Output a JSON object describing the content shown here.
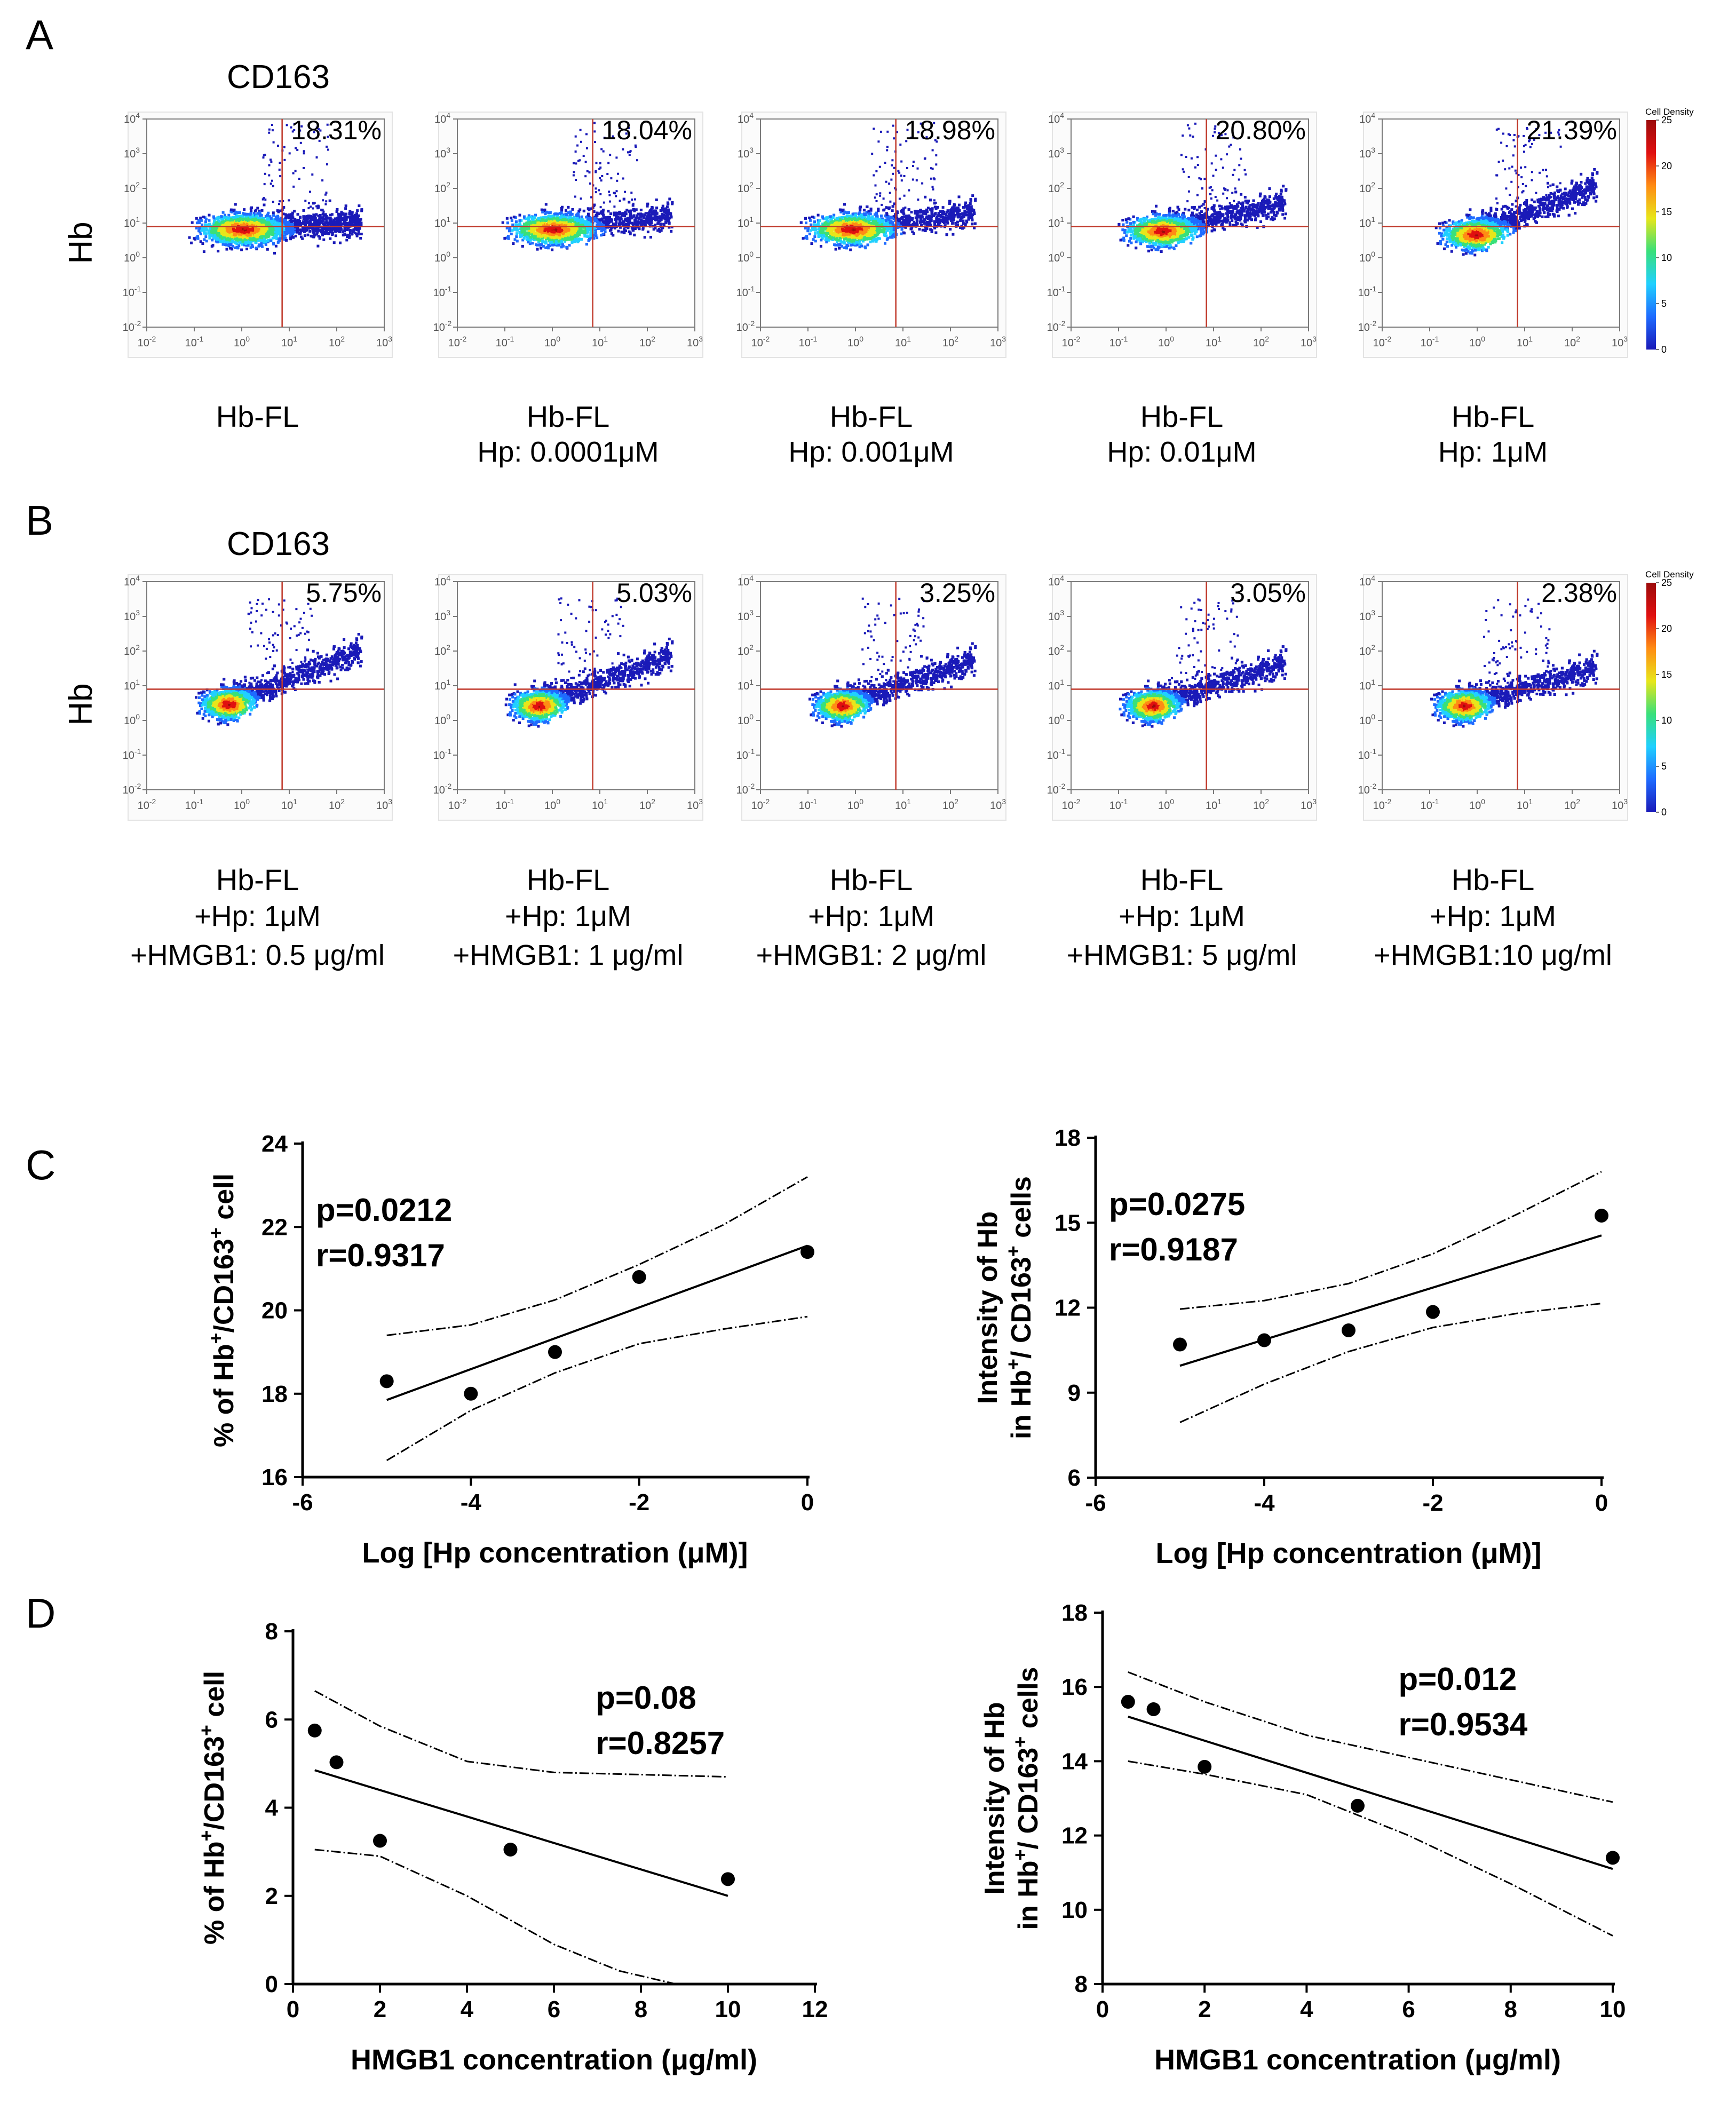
{
  "panel_letters": [
    "A",
    "B",
    "C",
    "D"
  ],
  "flow_common": {
    "y_label": "Hb",
    "x_label": "Hb-FL",
    "marker": "CD163",
    "exponents": [
      "-2",
      "-1",
      "0",
      "1",
      "2",
      "3"
    ],
    "y_exponents": [
      "-2",
      "-1",
      "0",
      "1",
      "2",
      "3",
      "4"
    ],
    "colorbar": {
      "title": "Cell Density",
      "ticks": [
        "0",
        "5",
        "10",
        "15",
        "20",
        "25"
      ],
      "colors": [
        "#1a1ab8",
        "#1f6bff",
        "#20d0ff",
        "#39e07a",
        "#e8e61a",
        "#ff8c14",
        "#e01010",
        "#9c0b0b"
      ]
    }
  },
  "flow_rows": [
    {
      "panel": "A",
      "plots": [
        {
          "percent": "18.31%",
          "conditions": [],
          "density": {
            "center_x": 0.0,
            "center_y": 0.85,
            "spread": 0.7,
            "tail": 0.05
          }
        },
        {
          "percent": "18.04%",
          "conditions": [
            "Hp: 0.0001μM"
          ],
          "density": {
            "center_x": 0.0,
            "center_y": 0.85,
            "spread": 0.7,
            "tail": 0.1
          }
        },
        {
          "percent": "18.98%",
          "conditions": [
            "Hp: 0.001μM"
          ],
          "density": {
            "center_x": -0.1,
            "center_y": 0.85,
            "spread": 0.7,
            "tail": 0.12
          }
        },
        {
          "percent": "20.80%",
          "conditions": [
            "Hp: 0.01μM"
          ],
          "density": {
            "center_x": -0.1,
            "center_y": 0.8,
            "spread": 0.6,
            "tail": 0.2
          }
        },
        {
          "percent": "21.39%",
          "conditions": [
            "Hp: 1μM"
          ],
          "density": {
            "center_x": -0.05,
            "center_y": 0.7,
            "spread": 0.55,
            "tail": 0.35
          }
        }
      ]
    },
    {
      "panel": "B",
      "plots": [
        {
          "percent": "5.75%",
          "conditions": [
            "+Hp: 1μM",
            "+HMGB1: 0.5 μg/ml"
          ],
          "density": {
            "center_x": -0.3,
            "center_y": 0.5,
            "spread": 0.45,
            "tail": 0.35
          }
        },
        {
          "percent": "5.03%",
          "conditions": [
            "+Hp: 1μM",
            "+HMGB1: 1 μg/ml"
          ],
          "density": {
            "center_x": -0.3,
            "center_y": 0.45,
            "spread": 0.45,
            "tail": 0.33
          }
        },
        {
          "percent": "3.25%",
          "conditions": [
            "+Hp: 1μM",
            "+HMGB1: 2 μg/ml"
          ],
          "density": {
            "center_x": -0.3,
            "center_y": 0.45,
            "spread": 0.45,
            "tail": 0.3
          }
        },
        {
          "percent": "3.05%",
          "conditions": [
            "+Hp: 1μM",
            "+HMGB1: 5 μg/ml"
          ],
          "density": {
            "center_x": -0.3,
            "center_y": 0.45,
            "spread": 0.45,
            "tail": 0.28
          }
        },
        {
          "percent": "2.38%",
          "conditions": [
            "+Hp: 1μM",
            "+HMGB1:10 μg/ml"
          ],
          "density": {
            "center_x": -0.3,
            "center_y": 0.45,
            "spread": 0.45,
            "tail": 0.25
          }
        }
      ]
    }
  ],
  "chart_data": [
    {
      "panel": "C",
      "type": "scatter",
      "xlabel": "Log [Hp concentration (μM)]",
      "ylabel": [
        "% of Hb",
        "+",
        "/CD163",
        "+",
        " cell"
      ],
      "x": [
        -5,
        -4,
        -3,
        -2,
        0
      ],
      "y": [
        18.3,
        18.0,
        19.0,
        20.8,
        21.4
      ],
      "xlim": [
        -6,
        0
      ],
      "ylim": [
        16,
        24
      ],
      "xticks": [
        -6,
        -4,
        -2,
        0
      ],
      "yticks": [
        16,
        18,
        20,
        22,
        24
      ],
      "fit": {
        "x": [
          -5,
          0
        ],
        "y": [
          17.85,
          21.55
        ]
      },
      "ci_upper": {
        "x": [
          -5,
          -4,
          -3,
          -2,
          -1,
          0
        ],
        "y": [
          19.4,
          19.65,
          20.25,
          21.1,
          22.05,
          23.2
        ]
      },
      "ci_lower": {
        "x": [
          -5,
          -4,
          -3,
          -2,
          -1,
          0
        ],
        "y": [
          16.4,
          17.6,
          18.5,
          19.2,
          19.55,
          19.85
        ]
      },
      "annotation": [
        "p=0.0212",
        "r=0.9317"
      ],
      "annotation_pos": "top-left"
    },
    {
      "panel": "C",
      "type": "scatter",
      "xlabel": "Log [Hp concentration (μM)]",
      "ylabel": [
        "Intensity of Hb",
        "in Hb",
        "+",
        "/ CD163",
        "+",
        " cells"
      ],
      "x": [
        -5,
        -4,
        -3,
        -2,
        0
      ],
      "y": [
        10.7,
        10.85,
        11.2,
        11.85,
        15.25
      ],
      "xlim": [
        -6,
        0
      ],
      "ylim": [
        6,
        18
      ],
      "xticks": [
        -6,
        -4,
        -2,
        0
      ],
      "yticks": [
        6,
        9,
        12,
        15,
        18
      ],
      "fit": {
        "x": [
          -5,
          0
        ],
        "y": [
          9.95,
          14.55
        ]
      },
      "ci_upper": {
        "x": [
          -5,
          -4,
          -3,
          -2,
          -1,
          0
        ],
        "y": [
          11.95,
          12.25,
          12.85,
          13.9,
          15.3,
          16.8
        ]
      },
      "ci_lower": {
        "x": [
          -5,
          -4,
          -3,
          -2,
          -1,
          0
        ],
        "y": [
          7.95,
          9.3,
          10.45,
          11.3,
          11.8,
          12.15
        ]
      },
      "annotation": [
        "p=0.0275",
        "r=0.9187"
      ],
      "annotation_pos": "top-left"
    },
    {
      "panel": "D",
      "type": "scatter",
      "xlabel": "HMGB1 concentration (μg/ml)",
      "ylabel": [
        "% of Hb",
        "+",
        "/CD163",
        "+",
        " cell"
      ],
      "x": [
        0.5,
        1,
        2,
        5,
        10
      ],
      "y": [
        5.75,
        5.03,
        3.25,
        3.05,
        2.38
      ],
      "xlim": [
        0,
        12
      ],
      "ylim": [
        0,
        8
      ],
      "xticks": [
        0,
        2,
        4,
        6,
        8,
        10,
        12
      ],
      "yticks": [
        0,
        2,
        4,
        6,
        8
      ],
      "fit": {
        "x": [
          0.5,
          10
        ],
        "y": [
          4.85,
          2.0
        ]
      },
      "ci_upper": {
        "x": [
          0.5,
          2,
          4,
          6,
          8,
          10
        ],
        "y": [
          6.65,
          5.85,
          5.05,
          4.8,
          4.75,
          4.7
        ]
      },
      "ci_lower": {
        "x": [
          0.5,
          2,
          4,
          6,
          7.5,
          8.8
        ],
        "y": [
          3.05,
          2.9,
          2.0,
          0.9,
          0.3,
          0.0
        ]
      },
      "annotation": [
        "p=0.08",
        "r=0.8257"
      ],
      "annotation_pos": "top-right"
    },
    {
      "panel": "D",
      "type": "scatter",
      "xlabel": "HMGB1 concentration (μg/ml)",
      "ylabel": [
        "Intensity of Hb",
        "in Hb",
        "+",
        "/ CD163",
        "+",
        " cells"
      ],
      "x": [
        0.5,
        1,
        2,
        5,
        10
      ],
      "y": [
        15.6,
        15.4,
        13.85,
        12.8,
        11.4
      ],
      "xlim": [
        0,
        10
      ],
      "ylim": [
        8,
        18
      ],
      "xticks": [
        0,
        2,
        4,
        6,
        8,
        10
      ],
      "yticks": [
        8,
        10,
        12,
        14,
        16,
        18
      ],
      "fit": {
        "x": [
          0.5,
          10
        ],
        "y": [
          15.2,
          11.1
        ]
      },
      "ci_upper": {
        "x": [
          0.5,
          2,
          4,
          6,
          8,
          10
        ],
        "y": [
          16.4,
          15.6,
          14.7,
          14.1,
          13.5,
          12.9
        ]
      },
      "ci_lower": {
        "x": [
          0.5,
          2,
          4,
          6,
          8,
          10
        ],
        "y": [
          14.0,
          13.65,
          13.1,
          12.0,
          10.7,
          9.3
        ]
      },
      "annotation": [
        "p=0.012",
        "r=0.9534"
      ],
      "annotation_pos": "top-right"
    }
  ]
}
